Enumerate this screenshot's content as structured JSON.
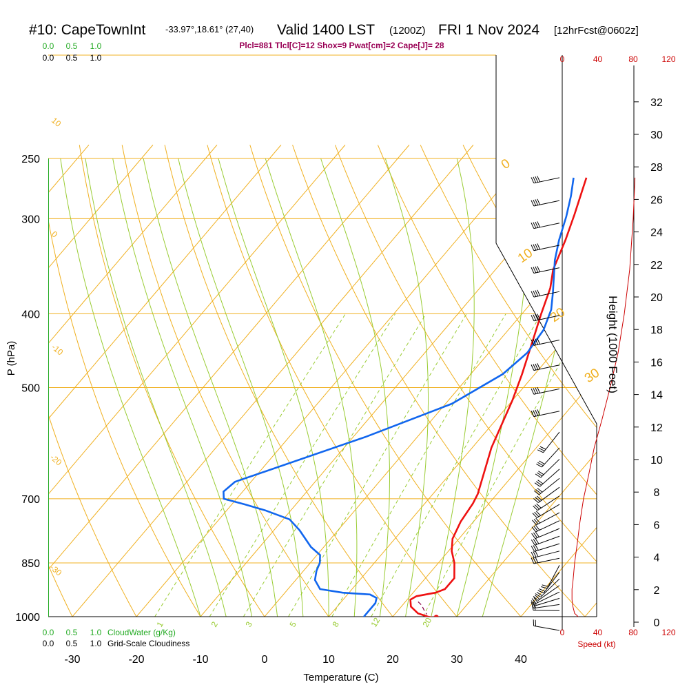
{
  "header": {
    "station": "#10: CapeTownInt",
    "coords": "-33.97°,18.61° (27,40)",
    "valid": "Valid 1400 LST",
    "zulu": "(1200Z)",
    "date": "FRI 1 Nov 2024",
    "forecast": "[12hrFcst@0602z]",
    "indices": "Plcl=881 Tlcl[C]=12 Shox=9 Pwat[cm]=2 Cape[J]= 28"
  },
  "colors": {
    "temperature": "#ee1111",
    "dewpoint": "#1166ee",
    "isotherm": "#f0b020",
    "mixing_ratio": "#99cc33",
    "cloud_water": "#22aa22",
    "parcel": "#880044",
    "wind_speed": "#cc0000",
    "indices_text": "#990055"
  },
  "chart_data": {
    "type": "line",
    "title": "#10: CapeTownInt",
    "xlabel": "Temperature (C)",
    "ylabel": "P (hPa)",
    "xlim": [
      -34,
      46
    ],
    "ylim": [
      1025,
      250
    ],
    "log_pressure": true,
    "x_ticks": [
      "-30",
      "-20",
      "-10",
      "0",
      "10",
      "20",
      "30",
      "40"
    ],
    "pressure_levels": [
      "250",
      "300",
      "400",
      "500",
      "700",
      "850",
      "1000"
    ],
    "height_ticks": [
      "0",
      "2",
      "4",
      "6",
      "8",
      "10",
      "12",
      "14",
      "16",
      "18",
      "20",
      "22",
      "24",
      "26",
      "28",
      "30",
      "32"
    ],
    "height_label": "Height (1000 Feet)",
    "isotherm_labels": [
      "0",
      "10",
      "20",
      "30"
    ],
    "dry_adiabat_labels": [
      "10",
      "0",
      "-10",
      "-20",
      "-30"
    ],
    "mixing_ratio_labels": [
      "1",
      "2",
      "3",
      "5",
      "8",
      "12",
      "20"
    ],
    "cloud_scale": [
      "0.0",
      "0.5",
      "1.0"
    ],
    "cloud_water_label": "CloudWater (g/Kg)",
    "cloudiness_label": "Grid-Scale Cloudiness",
    "speed_ticks": [
      "0",
      "40",
      "80",
      "120"
    ],
    "speed_label": "Speed (kt)",
    "series": [
      {
        "name": "Temperature",
        "points": [
          [
            26.5,
            1003
          ],
          [
            25.5,
            1000
          ],
          [
            23.5,
            990
          ],
          [
            21.5,
            970
          ],
          [
            20.5,
            950
          ],
          [
            21,
            940
          ],
          [
            23.5,
            930
          ],
          [
            24.5,
            920
          ],
          [
            24.5,
            890
          ],
          [
            22.5,
            850
          ],
          [
            20.5,
            820
          ],
          [
            19,
            790
          ],
          [
            18,
            750
          ],
          [
            17.5,
            710
          ],
          [
            17,
            690
          ],
          [
            13,
            600
          ],
          [
            10,
            520
          ],
          [
            8,
            480
          ],
          [
            5,
            430
          ],
          [
            3,
            400
          ],
          [
            1,
            370
          ],
          [
            -1,
            350
          ],
          [
            -3,
            320
          ],
          [
            -5,
            296
          ],
          [
            -7,
            275
          ],
          [
            -8,
            265
          ]
        ]
      },
      {
        "name": "Dewpoint",
        "points": [
          [
            15.6,
            1003
          ],
          [
            15.5,
            1000
          ],
          [
            15.5,
            960
          ],
          [
            15,
            945
          ],
          [
            13.5,
            935
          ],
          [
            9,
            930
          ],
          [
            5,
            920
          ],
          [
            3,
            895
          ],
          [
            2,
            870
          ],
          [
            1.5,
            850
          ],
          [
            0.5,
            830
          ],
          [
            -2,
            810
          ],
          [
            -6,
            770
          ],
          [
            -9,
            745
          ],
          [
            -14,
            725
          ],
          [
            -18,
            712
          ],
          [
            -22,
            700
          ],
          [
            -23,
            685
          ],
          [
            -22.5,
            665
          ],
          [
            -8,
            580
          ],
          [
            1,
            525
          ],
          [
            5,
            480
          ],
          [
            6,
            450
          ],
          [
            5.5,
            420
          ],
          [
            4,
            395
          ],
          [
            2,
            375
          ],
          [
            -2,
            340
          ],
          [
            -4,
            320
          ],
          [
            -6,
            298
          ],
          [
            -8,
            280
          ],
          [
            -10,
            265
          ]
        ]
      },
      {
        "name": "Parcel",
        "points": [
          [
            22,
            956
          ],
          [
            23,
            966
          ],
          [
            24,
            980
          ],
          [
            25,
            993
          ]
        ]
      },
      {
        "name": "Cloudiness",
        "points": [
          [
            0,
            250
          ],
          [
            0,
            1000
          ]
        ]
      }
    ],
    "wind_speed_profile": [
      [
        1000,
        18
      ],
      [
        990,
        14
      ],
      [
        970,
        12
      ],
      [
        950,
        11
      ],
      [
        920,
        11
      ],
      [
        900,
        12
      ],
      [
        850,
        14
      ],
      [
        800,
        17
      ],
      [
        750,
        20
      ],
      [
        700,
        24
      ],
      [
        650,
        30
      ],
      [
        600,
        36
      ],
      [
        550,
        45
      ],
      [
        500,
        54
      ],
      [
        450,
        63
      ],
      [
        400,
        70
      ],
      [
        350,
        76
      ],
      [
        300,
        80
      ],
      [
        265,
        82
      ]
    ],
    "wind_barb_levels": [
      265,
      284,
      304,
      325,
      348,
      374,
      402,
      433,
      467,
      502,
      537,
      572,
      600,
      621,
      640,
      658,
      676,
      694,
      712,
      730,
      748,
      766,
      784,
      802,
      820,
      838,
      856,
      874,
      892,
      910,
      928,
      946,
      964,
      982,
      1000
    ]
  }
}
